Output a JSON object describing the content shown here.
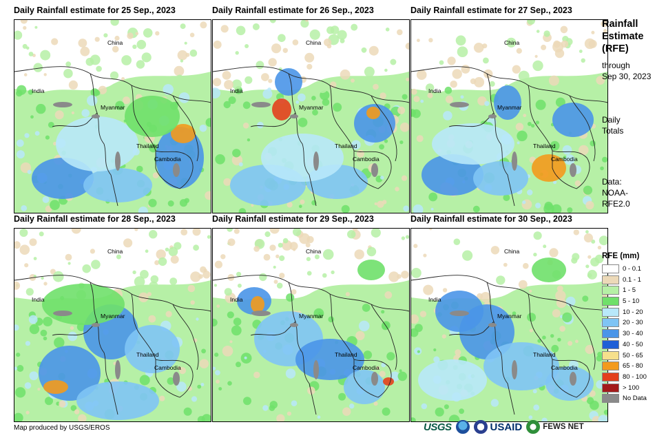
{
  "panels": [
    {
      "title": "Daily Rainfall estimate for 25 Sep., 2023",
      "labels": {
        "china": "China",
        "india": "India",
        "myanmar": "Myanmar",
        "thailand": "Thailand",
        "cambodia": "Cambodia"
      }
    },
    {
      "title": "Daily Rainfall estimate for 26 Sep., 2023",
      "labels": {
        "china": "China",
        "india": "India",
        "myanmar": "Myanmar",
        "thailand": "Thailand",
        "cambodia": "Cambodia"
      }
    },
    {
      "title": "Daily Rainfall estimate for 27 Sep., 2023",
      "labels": {
        "china": "China",
        "india": "India",
        "myanmar": "Myanmar",
        "thailand": "Thailand",
        "cambodia": "Cambodia"
      }
    },
    {
      "title": "Daily Rainfall estimate for 28 Sep., 2023",
      "labels": {
        "china": "China",
        "india": "India",
        "myanmar": "Myanmar",
        "thailand": "Thailand",
        "cambodia": "Cambodia"
      }
    },
    {
      "title": "Daily Rainfall estimate for 29 Sep., 2023",
      "labels": {
        "china": "China",
        "india": "India",
        "myanmar": "Myanmar",
        "thailand": "Thailand",
        "cambodia": "Cambodia"
      }
    },
    {
      "title": "Daily Rainfall estimate for 30 Sep., 2023",
      "labels": {
        "china": "China",
        "india": "India",
        "myanmar": "Myanmar",
        "thailand": "Thailand",
        "cambodia": "Cambodia"
      }
    }
  ],
  "sidebar": {
    "title_line1": "Rainfall",
    "title_line2": "Estimate",
    "title_line3": "(RFE)",
    "through": "through",
    "through_date": "Sep 30, 2023",
    "daily": "Daily",
    "totals": "Totals",
    "data_label": "Data:",
    "data_source1": "NOAA-",
    "data_source2": "RFE2.0"
  },
  "legend": {
    "title": "RFE (mm)",
    "items": [
      {
        "label": "0 - 0.1",
        "color": "#ffffff"
      },
      {
        "label": "0.1 - 1",
        "color": "#ecd9b8"
      },
      {
        "label": "1 - 5",
        "color": "#b6f0a6"
      },
      {
        "label": "5 - 10",
        "color": "#6fe06a"
      },
      {
        "label": "10 - 20",
        "color": "#b8e8fa"
      },
      {
        "label": "20 - 30",
        "color": "#7fc4f5"
      },
      {
        "label": "30 - 40",
        "color": "#4a95e8"
      },
      {
        "label": "40 - 50",
        "color": "#1f5fd6"
      },
      {
        "label": "50 - 65",
        "color": "#f6e08c"
      },
      {
        "label": "65 - 80",
        "color": "#f39a1d"
      },
      {
        "label": "80 - 100",
        "color": "#e3401d"
      },
      {
        "label": "> 100",
        "color": "#a31a1a"
      },
      {
        "label": "No Data",
        "color": "#8a8a8a"
      }
    ]
  },
  "footer": {
    "credit": "Map produced by USGS/EROS",
    "usgs": "USGS",
    "usaid": "USAID",
    "fews": "FEWS NET"
  }
}
